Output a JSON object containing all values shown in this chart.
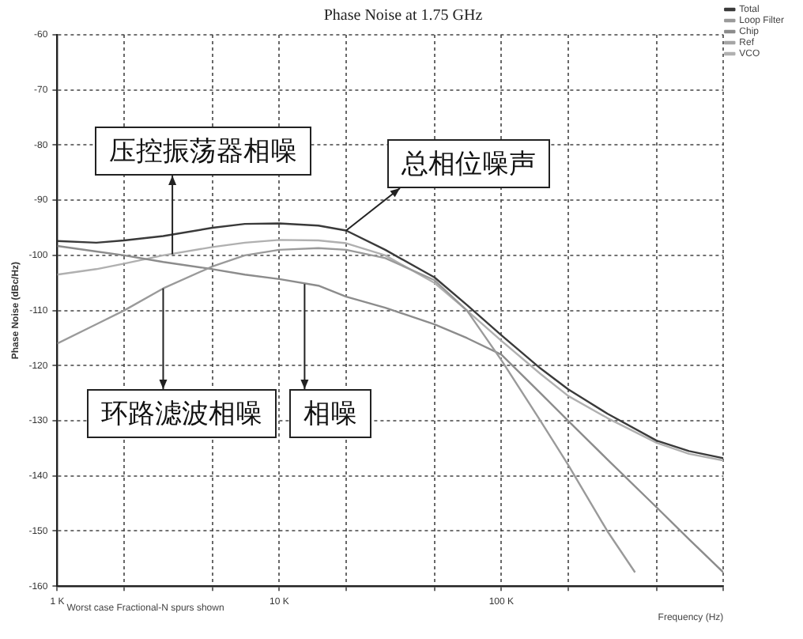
{
  "chart_data": {
    "type": "line",
    "title": "Phase Noise at 1.75 GHz",
    "xlabel": "Frequency (Hz)",
    "ylabel": "Phase Noise (dBc/Hz)",
    "log": "x",
    "grid": true,
    "legend": "top right",
    "marker": "none",
    "line_style": "solid",
    "xlim": [
      1000,
      1000000
    ],
    "ylim": [
      -160,
      -60
    ],
    "xticks": [
      {
        "value": 1000,
        "label": "1 K"
      },
      {
        "value": 2000,
        "label": null
      },
      {
        "value": 5000,
        "label": null
      },
      {
        "value": 10000,
        "label": "10 K"
      },
      {
        "value": 20000,
        "label": null
      },
      {
        "value": 50000,
        "label": null
      },
      {
        "value": 100000,
        "label": "100 K"
      },
      {
        "value": 200000,
        "label": null
      },
      {
        "value": 500000,
        "label": null
      },
      {
        "value": 1000000,
        "label": null
      }
    ],
    "yticks": [
      -160,
      -150,
      -140,
      -130,
      -120,
      -110,
      -100,
      -90,
      -80,
      -70,
      -60
    ],
    "series": [
      {
        "name": "Total",
        "color": "#3a3a3a",
        "x": [
          1000,
          1500,
          2000,
          3000,
          5000,
          7000,
          10000,
          15000,
          20000,
          30000,
          50000,
          70000,
          100000,
          150000,
          200000,
          300000,
          500000,
          700000,
          1000000
        ],
        "values": [
          -97.4,
          -97.7,
          -97.3,
          -96.5,
          -95,
          -94.3,
          -94.2,
          -94.6,
          -95.5,
          -99,
          -104,
          -109,
          -114.5,
          -120.5,
          -124.3,
          -128.7,
          -133.6,
          -135.5,
          -136.8
        ]
      },
      {
        "name": "Loop Filter",
        "color": "#9a9a9a",
        "x": [
          1000,
          1500,
          2000,
          3000,
          5000,
          7000,
          10000,
          15000,
          20000,
          30000,
          50000,
          70000,
          100000,
          150000,
          200000,
          300000,
          400000
        ],
        "values": [
          -116,
          -112.5,
          -110,
          -106,
          -102,
          -100,
          -99,
          -98.7,
          -99,
          -100.5,
          -104.5,
          -110,
          -119,
          -130,
          -138,
          -150,
          -157.5
        ]
      },
      {
        "name": "Chip",
        "color": "#8c8c8c",
        "x": [
          1000,
          1500,
          2000,
          3000,
          5000,
          7000,
          10000,
          15000,
          20000,
          30000,
          50000,
          70000,
          100000,
          150000,
          200000,
          300000,
          500000,
          700000,
          1000000
        ],
        "values": [
          -98.3,
          -99.3,
          -100,
          -101.2,
          -102.5,
          -103.5,
          -104.3,
          -105.5,
          -107.5,
          -109.5,
          -112.5,
          -115,
          -118,
          -125,
          -130,
          -137,
          -145.7,
          -151.5,
          -157.5
        ]
      },
      {
        "name": "Ref",
        "color": "#a5a5a5"
      },
      {
        "name": "VCO",
        "color": "#b0b0b0",
        "x": [
          1000,
          1500,
          2000,
          3000,
          5000,
          7000,
          10000,
          15000,
          20000,
          30000,
          50000,
          70000,
          100000,
          150000,
          200000,
          300000,
          500000,
          700000,
          1000000
        ],
        "values": [
          -103.5,
          -102.5,
          -101.5,
          -100,
          -98.5,
          -97.7,
          -97.2,
          -97.3,
          -97.8,
          -100,
          -105,
          -110,
          -115.5,
          -121.5,
          -125.5,
          -129.5,
          -134,
          -136,
          -137.2
        ]
      }
    ],
    "annotations": [
      {
        "text": "压控振荡器相噪",
        "x": 3300,
        "y": -99.8
      },
      {
        "text": "总相位噪声",
        "x": 20000,
        "y": -95.5
      },
      {
        "text": "环路滤波相噪",
        "x": 3000,
        "y": -106
      },
      {
        "text": "相噪",
        "x": 13000,
        "y": -105.2
      },
      "Worst case Fractional-N spurs shown"
    ]
  }
}
